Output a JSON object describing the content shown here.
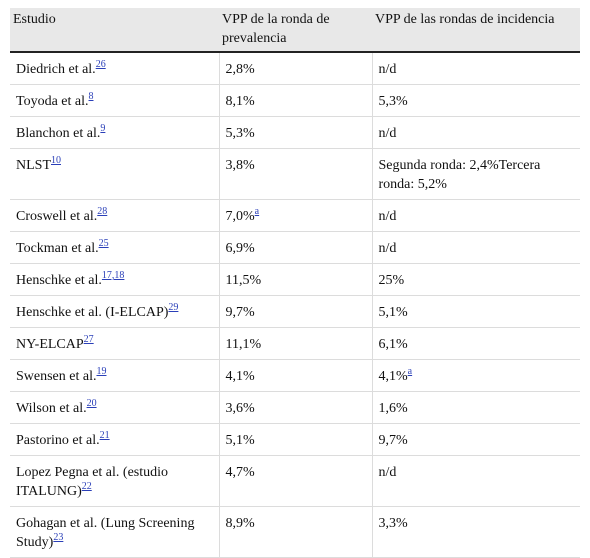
{
  "table": {
    "headers": [
      "Estudio",
      "VPP de la ronda de prevalencia",
      "VPP de las rondas de incidencia"
    ],
    "rows": [
      {
        "study": "Diedrich et al.",
        "ref": "26",
        "prev": "2,8%",
        "prev_sup": "",
        "inc": "n/d",
        "inc_sup": ""
      },
      {
        "study": "Toyoda et al.",
        "ref": "8",
        "prev": "8,1%",
        "prev_sup": "",
        "inc": "5,3%",
        "inc_sup": ""
      },
      {
        "study": "Blanchon et al.",
        "ref": "9",
        "prev": "5,3%",
        "prev_sup": "",
        "inc": "n/d",
        "inc_sup": ""
      },
      {
        "study": "NLST",
        "ref": "10",
        "prev": "3,8%",
        "prev_sup": "",
        "inc": "Segunda ronda: 2,4%Tercera ronda: 5,2%",
        "inc_sup": ""
      },
      {
        "study": "Croswell et al.",
        "ref": "28",
        "prev": "7,0%",
        "prev_sup": "a",
        "inc": "n/d",
        "inc_sup": ""
      },
      {
        "study": "Tockman et al.",
        "ref": "25",
        "prev": "6,9%",
        "prev_sup": "",
        "inc": "n/d",
        "inc_sup": ""
      },
      {
        "study": "Henschke et al.",
        "ref": "17,18",
        "prev": "11,5%",
        "prev_sup": "",
        "inc": "25%",
        "inc_sup": ""
      },
      {
        "study": "Henschke et al. (I-ELCAP)",
        "ref": "29",
        "prev": "9,7%",
        "prev_sup": "",
        "inc": "5,1%",
        "inc_sup": ""
      },
      {
        "study": "NY-ELCAP",
        "ref": "27",
        "prev": "11,1%",
        "prev_sup": "",
        "inc": "6,1%",
        "inc_sup": ""
      },
      {
        "study": "Swensen et al.",
        "ref": "19",
        "prev": "4,1%",
        "prev_sup": "",
        "inc": "4,1%",
        "inc_sup": "a"
      },
      {
        "study": "Wilson et al.",
        "ref": "20",
        "prev": "3,6%",
        "prev_sup": "",
        "inc": "1,6%",
        "inc_sup": ""
      },
      {
        "study": "Pastorino et al.",
        "ref": "21",
        "prev": "5,1%",
        "prev_sup": "",
        "inc": "9,7%",
        "inc_sup": ""
      },
      {
        "study": "Lopez Pegna et al. (estudio ITALUNG)",
        "ref": "22",
        "prev": "4,7%",
        "prev_sup": "",
        "inc": "n/d",
        "inc_sup": ""
      },
      {
        "study": "Gohagan et al. (Lung Screening Study)",
        "ref": "23",
        "prev": "8,9%",
        "prev_sup": "",
        "inc": "3,3%",
        "inc_sup": ""
      }
    ]
  }
}
